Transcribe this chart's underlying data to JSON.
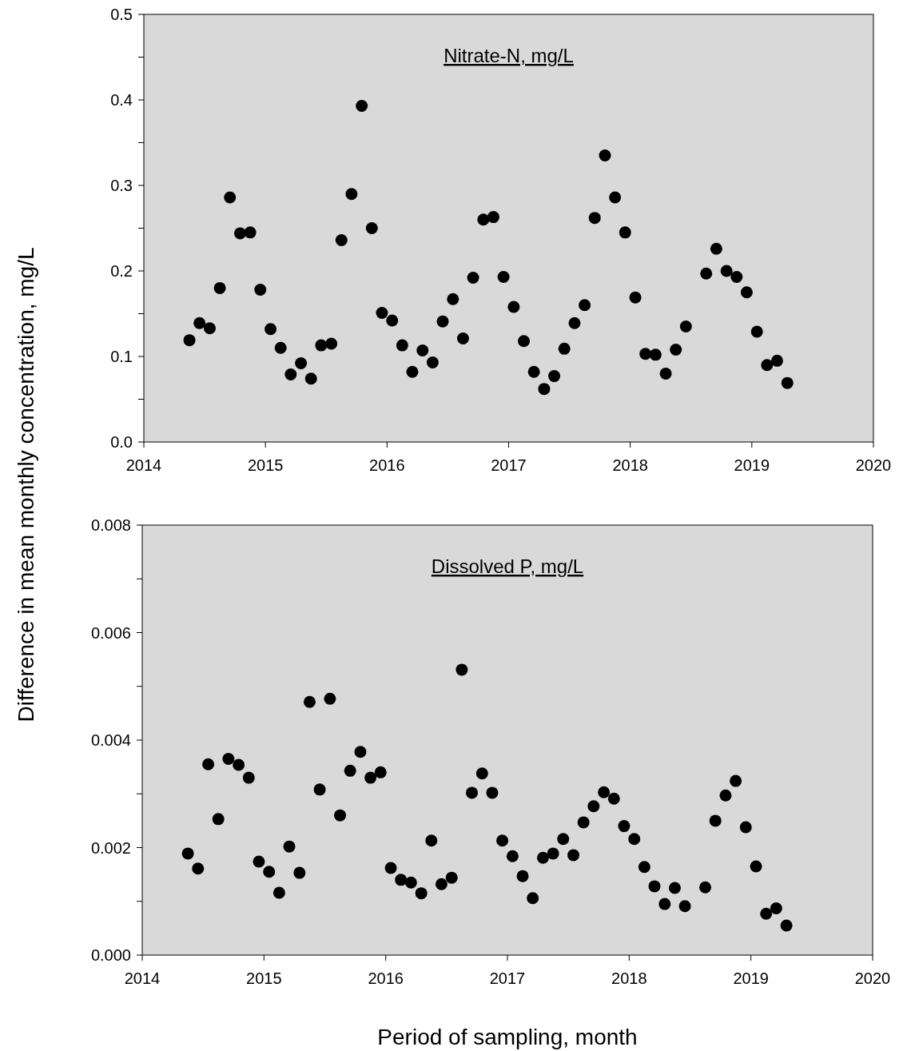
{
  "chart_data": [
    {
      "type": "scatter",
      "title": "Nitrate-N, mg/L",
      "ylabel": "Difference in mean monthly concentration, mg/L",
      "marker": "circle",
      "grid": false,
      "x": [
        2014.375,
        2014.458,
        2014.542,
        2014.625,
        2014.708,
        2014.792,
        2014.875,
        2014.958,
        2015.042,
        2015.125,
        2015.208,
        2015.292,
        2015.375,
        2015.458,
        2015.542,
        2015.625,
        2015.708,
        2015.792,
        2015.875,
        2015.958,
        2016.042,
        2016.125,
        2016.208,
        2016.292,
        2016.375,
        2016.458,
        2016.542,
        2016.625,
        2016.708,
        2016.792,
        2016.875,
        2016.958,
        2017.042,
        2017.125,
        2017.208,
        2017.292,
        2017.375,
        2017.458,
        2017.542,
        2017.625,
        2017.708,
        2017.792,
        2017.875,
        2017.958,
        2018.042,
        2018.125,
        2018.208,
        2018.292,
        2018.375,
        2018.458,
        2018.625,
        2018.708,
        2018.792,
        2018.875,
        2018.958,
        2019.042,
        2019.125,
        2019.208,
        2019.292
      ],
      "series": [
        {
          "color": "#000000",
          "values": [
            0.119,
            0.139,
            0.133,
            0.18,
            0.286,
            0.244,
            0.245,
            0.178,
            0.132,
            0.11,
            0.079,
            0.092,
            0.074,
            0.113,
            0.115,
            0.236,
            0.29,
            0.393,
            0.25,
            0.151,
            0.142,
            0.113,
            0.082,
            0.107,
            0.093,
            0.141,
            0.167,
            0.121,
            0.192,
            0.26,
            0.263,
            0.193,
            0.158,
            0.118,
            0.082,
            0.062,
            0.077,
            0.109,
            0.139,
            0.16,
            0.262,
            0.335,
            0.286,
            0.245,
            0.169,
            0.103,
            0.102,
            0.08,
            0.108,
            0.135,
            0.197,
            0.226,
            0.2,
            0.193,
            0.175,
            0.129,
            0.09,
            0.095,
            0.069
          ]
        }
      ],
      "xlim": [
        2014,
        2020
      ],
      "xticks": [
        2014,
        2015,
        2016,
        2017,
        2018,
        2019,
        2020
      ],
      "ylim": [
        0,
        0.5
      ],
      "yticks": [
        {
          "value": 0,
          "label": "0.0"
        },
        {
          "value": 0.05,
          "label": null
        },
        {
          "value": 0.1,
          "label": "0.1"
        },
        {
          "value": 0.15,
          "label": null
        },
        {
          "value": 0.2,
          "label": "0.2"
        },
        {
          "value": 0.25,
          "label": null
        },
        {
          "value": 0.3,
          "label": "0.3"
        },
        {
          "value": 0.35,
          "label": null
        },
        {
          "value": 0.4,
          "label": "0.4"
        },
        {
          "value": 0.45,
          "label": null
        },
        {
          "value": 0.5,
          "label": "0.5"
        }
      ]
    },
    {
      "type": "scatter",
      "title": "Dissolved P, mg/L",
      "xlabel": "Period of sampling, month",
      "marker": "circle",
      "grid": false,
      "x": [
        2014.375,
        2014.458,
        2014.542,
        2014.625,
        2014.708,
        2014.792,
        2014.875,
        2014.958,
        2015.042,
        2015.125,
        2015.208,
        2015.292,
        2015.375,
        2015.458,
        2015.542,
        2015.625,
        2015.708,
        2015.792,
        2015.875,
        2015.958,
        2016.042,
        2016.125,
        2016.208,
        2016.292,
        2016.375,
        2016.458,
        2016.542,
        2016.625,
        2016.708,
        2016.792,
        2016.875,
        2016.958,
        2017.042,
        2017.125,
        2017.208,
        2017.292,
        2017.375,
        2017.458,
        2017.542,
        2017.625,
        2017.708,
        2017.792,
        2017.875,
        2017.958,
        2018.042,
        2018.125,
        2018.208,
        2018.292,
        2018.375,
        2018.458,
        2018.625,
        2018.708,
        2018.792,
        2018.875,
        2018.958,
        2019.042,
        2019.125,
        2019.208,
        2019.292
      ],
      "series": [
        {
          "color": "#000000",
          "values": [
            0.00189,
            0.00161,
            0.00355,
            0.00253,
            0.00365,
            0.00354,
            0.0033,
            0.00174,
            0.00155,
            0.00116,
            0.00202,
            0.00153,
            0.00471,
            0.00308,
            0.00477,
            0.0026,
            0.00343,
            0.00378,
            0.0033,
            0.0034,
            0.00162,
            0.0014,
            0.00135,
            0.00115,
            0.00213,
            0.00132,
            0.00144,
            0.00531,
            0.00302,
            0.00338,
            0.00302,
            0.00213,
            0.00184,
            0.00147,
            0.00106,
            0.00181,
            0.00189,
            0.00216,
            0.00186,
            0.00247,
            0.00277,
            0.00303,
            0.00291,
            0.0024,
            0.00216,
            0.00164,
            0.00128,
            0.00095,
            0.00125,
            0.00091,
            0.00126,
            0.0025,
            0.00297,
            0.00324,
            0.00238,
            0.00165,
            0.00077,
            0.00087,
            0.00055
          ]
        }
      ],
      "xlim": [
        2014,
        2020
      ],
      "xticks": [
        2014,
        2015,
        2016,
        2017,
        2018,
        2019,
        2020
      ],
      "ylim": [
        0,
        0.008
      ],
      "yticks": [
        {
          "value": 0,
          "label": "0.000"
        },
        {
          "value": 0.001,
          "label": null
        },
        {
          "value": 0.002,
          "label": "0.002"
        },
        {
          "value": 0.003,
          "label": null
        },
        {
          "value": 0.004,
          "label": "0.004"
        },
        {
          "value": 0.005,
          "label": null
        },
        {
          "value": 0.006,
          "label": "0.006"
        },
        {
          "value": 0.007,
          "label": null
        },
        {
          "value": 0.008,
          "label": "0.008"
        }
      ]
    }
  ]
}
